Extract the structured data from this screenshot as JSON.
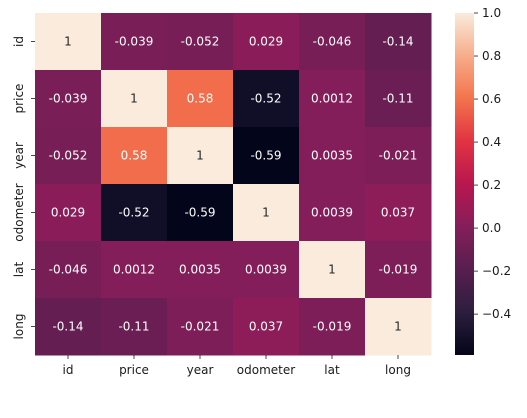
{
  "chart_data": {
    "type": "heatmap",
    "title": "",
    "xlabel": "",
    "ylabel": "",
    "x_categories": [
      "id",
      "price",
      "year",
      "odometer",
      "lat",
      "long"
    ],
    "y_categories": [
      "id",
      "price",
      "year",
      "odometer",
      "lat",
      "long"
    ],
    "values": [
      [
        1,
        -0.039,
        -0.052,
        0.029,
        -0.046,
        -0.14
      ],
      [
        -0.039,
        1,
        0.58,
        -0.52,
        0.0012,
        -0.11
      ],
      [
        -0.052,
        0.58,
        1,
        -0.59,
        0.0035,
        -0.021
      ],
      [
        0.029,
        -0.52,
        -0.59,
        1,
        0.0039,
        0.037
      ],
      [
        -0.046,
        0.0012,
        0.0035,
        0.0039,
        1,
        -0.019
      ],
      [
        -0.14,
        -0.11,
        -0.021,
        0.037,
        -0.019,
        1
      ]
    ],
    "labels": [
      [
        "1",
        "-0.039",
        "-0.052",
        "0.029",
        "-0.046",
        "-0.14"
      ],
      [
        "-0.039",
        "1",
        "0.58",
        "-0.52",
        "0.0012",
        "-0.11"
      ],
      [
        "-0.052",
        "0.58",
        "1",
        "-0.59",
        "0.0035",
        "-0.021"
      ],
      [
        "0.029",
        "-0.52",
        "-0.59",
        "1",
        "0.0039",
        "0.037"
      ],
      [
        "-0.046",
        "0.0012",
        "0.0035",
        "0.0039",
        "1",
        "-0.019"
      ],
      [
        "-0.14",
        "-0.11",
        "-0.021",
        "0.037",
        "-0.019",
        "1"
      ]
    ],
    "colorbar": {
      "range": [
        -0.59,
        1.0
      ],
      "ticks": [
        1.0,
        0.8,
        0.6,
        0.4,
        0.2,
        0.0,
        -0.2,
        -0.4
      ],
      "tick_labels": [
        "1.0",
        "0.8",
        "0.6",
        "0.4",
        "0.2",
        "0.0",
        "−0.2",
        "−0.4"
      ],
      "colormap": "rocket",
      "colormap_stops": [
        "#03051a",
        "#2c1e3e",
        "#581e4f",
        "#841e5a",
        "#b8174f",
        "#e13342",
        "#f3744c",
        "#f6ad8a",
        "#faebdd"
      ]
    },
    "annotation_colors": {
      "on_dark": "#ffffff",
      "on_light": "#262626"
    }
  }
}
